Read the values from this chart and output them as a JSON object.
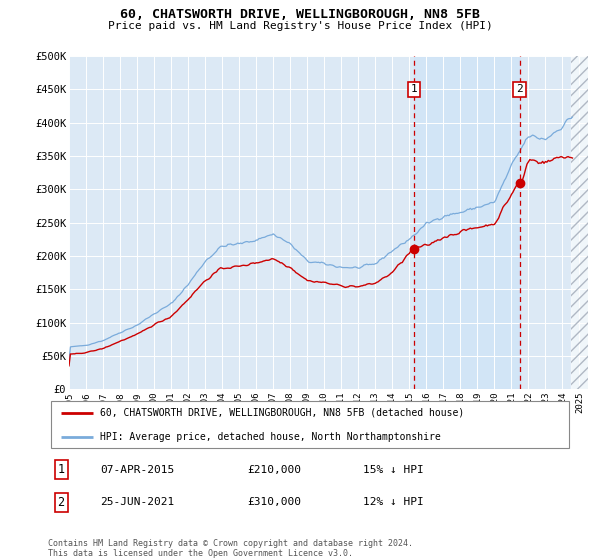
{
  "title": "60, CHATSWORTH DRIVE, WELLINGBOROUGH, NN8 5FB",
  "subtitle": "Price paid vs. HM Land Registry's House Price Index (HPI)",
  "ylim": [
    0,
    500000
  ],
  "yticks": [
    0,
    50000,
    100000,
    150000,
    200000,
    250000,
    300000,
    350000,
    400000,
    450000,
    500000
  ],
  "ytick_labels": [
    "£0",
    "£50K",
    "£100K",
    "£150K",
    "£200K",
    "£250K",
    "£300K",
    "£350K",
    "£400K",
    "£450K",
    "£500K"
  ],
  "xlim_start": 1995.0,
  "xlim_end": 2025.5,
  "xticks": [
    1995,
    1996,
    1997,
    1998,
    1999,
    2000,
    2001,
    2002,
    2003,
    2004,
    2005,
    2006,
    2007,
    2008,
    2009,
    2010,
    2011,
    2012,
    2013,
    2014,
    2015,
    2016,
    2017,
    2018,
    2019,
    2020,
    2021,
    2022,
    2023,
    2024,
    2025
  ],
  "background_color": "#ffffff",
  "plot_bg_color": "#dce9f5",
  "grid_color": "#c8d8e8",
  "red_line_color": "#cc0000",
  "blue_line_color": "#7aabdb",
  "shade_between_color": "#d0e4f7",
  "marker1_x": 2015.27,
  "marker1_y": 210000,
  "marker1_label": "1",
  "marker1_date": "07-APR-2015",
  "marker1_price": "£210,000",
  "marker1_pct": "15% ↓ HPI",
  "marker2_x": 2021.48,
  "marker2_y": 310000,
  "marker2_label": "2",
  "marker2_date": "25-JUN-2021",
  "marker2_price": "£310,000",
  "marker2_pct": "12% ↓ HPI",
  "legend_line1": "60, CHATSWORTH DRIVE, WELLINGBOROUGH, NN8 5FB (detached house)",
  "legend_line2": "HPI: Average price, detached house, North Northamptonshire",
  "footnote": "Contains HM Land Registry data © Crown copyright and database right 2024.\nThis data is licensed under the Open Government Licence v3.0."
}
